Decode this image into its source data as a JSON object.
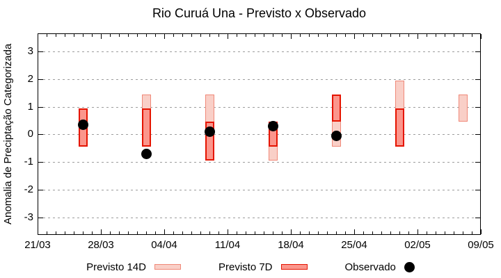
{
  "title": "Rio Curuá Una - Previsto x Observado",
  "chart_data": {
    "type": "bar",
    "subtype": "floating-range-boxes-with-scatter",
    "title": "Rio Curuá Una - Previsto x Observado",
    "xlabel": "",
    "ylabel": "Anomalia de Preciptação Categorizada",
    "ylim": [
      -3.63,
      3.65
    ],
    "y_ticks": [
      3,
      2,
      1,
      0,
      -1,
      -2,
      -3
    ],
    "x_total_days": 49,
    "x_tick_days": [
      0,
      7,
      14,
      21,
      28,
      35,
      42,
      49
    ],
    "x_tick_labels": [
      "21/03",
      "28/03",
      "04/04",
      "11/04",
      "18/04",
      "25/04",
      "02/05",
      "09/05"
    ],
    "grid": "horizontal-dashed",
    "grid_color": "#9c9c9c",
    "legend_position": "bottom-center",
    "series": [
      {
        "name": "Previsto 14D",
        "type": "range-box",
        "fill": "#f9cfc7",
        "stroke": "#f08878",
        "points": [
          {
            "date": "26/03",
            "day": 5,
            "low": -0.45,
            "high": 0.95
          },
          {
            "date": "02/04",
            "day": 12,
            "low": -0.45,
            "high": 1.45
          },
          {
            "date": "09/04",
            "day": 19,
            "low": -0.95,
            "high": 1.45
          },
          {
            "date": "16/04",
            "day": 26,
            "low": -0.95,
            "high": 0.45
          },
          {
            "date": "23/04",
            "day": 33,
            "low": -0.45,
            "high": 1.45
          },
          {
            "date": "30/04",
            "day": 40,
            "low": -0.45,
            "high": 1.95
          },
          {
            "date": "07/05",
            "day": 47,
            "low": 0.45,
            "high": 1.45
          }
        ]
      },
      {
        "name": "Previsto 7D",
        "type": "range-box",
        "fill": "#fb968c",
        "stroke": "#e51400",
        "points": [
          {
            "date": "26/03",
            "day": 5,
            "low": -0.45,
            "high": 0.95
          },
          {
            "date": "02/04",
            "day": 12,
            "low": -0.45,
            "high": 0.95
          },
          {
            "date": "09/04",
            "day": 19,
            "low": -0.95,
            "high": 0.45
          },
          {
            "date": "16/04",
            "day": 26,
            "low": -0.45,
            "high": 0.45
          },
          {
            "date": "23/04",
            "day": 33,
            "low": 0.45,
            "high": 1.45
          },
          {
            "date": "30/04",
            "day": 40,
            "low": -0.45,
            "high": 0.95
          }
        ]
      },
      {
        "name": "Observado",
        "type": "scatter",
        "color": "#000000",
        "points": [
          {
            "date": "26/03",
            "day": 5,
            "value": 0.35
          },
          {
            "date": "02/04",
            "day": 12,
            "value": -0.7
          },
          {
            "date": "09/04",
            "day": 19,
            "value": 0.1
          },
          {
            "date": "16/04",
            "day": 26,
            "value": 0.3
          },
          {
            "date": "23/04",
            "day": 33,
            "value": -0.05
          }
        ]
      }
    ]
  },
  "legend": {
    "items": [
      {
        "label": "Previsto 14D",
        "swatch": "box-light"
      },
      {
        "label": "Previsto 7D",
        "swatch": "box-dark"
      },
      {
        "label": "Observado",
        "swatch": "dot"
      }
    ]
  },
  "colors": {
    "background": "#ffffff",
    "frame": "#000000",
    "grid": "#9c9c9c",
    "previsto14_fill": "#f9cfc7",
    "previsto14_stroke": "#f08878",
    "previsto7_fill": "#fb968c",
    "previsto7_stroke": "#e51400",
    "observado": "#000000"
  }
}
